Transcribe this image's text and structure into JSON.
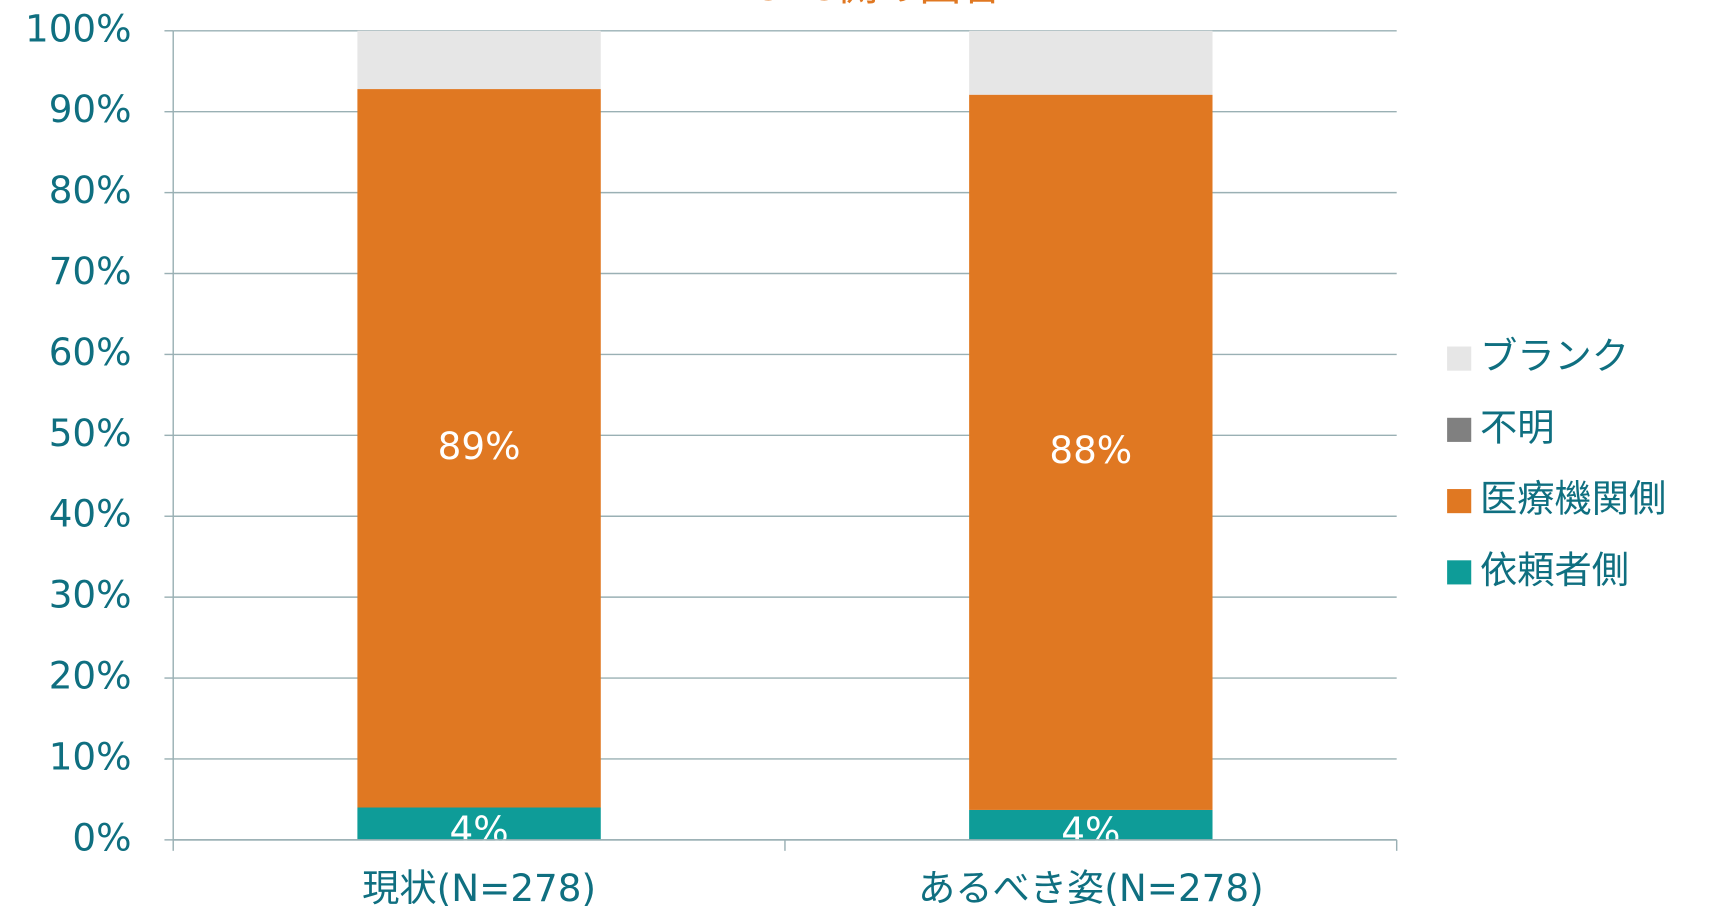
{
  "chart_data": {
    "type": "stacked_bar",
    "title": "CRC側の回答",
    "categories": [
      "現状(N=278)",
      "あるべき姿(N=278)"
    ],
    "series": [
      {
        "name": "依頼者側",
        "color": "#0e9c98",
        "values": [
          4,
          3.7
        ],
        "value_labels": [
          "4%",
          "4%"
        ]
      },
      {
        "name": "医療機関側",
        "color": "#e07822",
        "values": [
          88.8,
          88.4
        ],
        "value_labels": [
          "89%",
          "88%"
        ]
      },
      {
        "name": "不明",
        "color": "#808080",
        "values": [
          0,
          0
        ]
      },
      {
        "name": "ブランク",
        "color": "#e6e6e6",
        "values": [
          7.2,
          7.9
        ]
      }
    ],
    "ylim": [
      0,
      100
    ],
    "yticks": [
      {
        "value": 0,
        "label": "0%"
      },
      {
        "value": 10,
        "label": "10%"
      },
      {
        "value": 20,
        "label": "20%"
      },
      {
        "value": 30,
        "label": "30%"
      },
      {
        "value": 40,
        "label": "40%"
      },
      {
        "value": 50,
        "label": "50%"
      },
      {
        "value": 60,
        "label": "60%"
      },
      {
        "value": 70,
        "label": "70%"
      },
      {
        "value": 80,
        "label": "80%"
      },
      {
        "value": 90,
        "label": "90%"
      },
      {
        "value": 100,
        "label": "100%"
      }
    ],
    "grid": true,
    "legend": "right"
  }
}
